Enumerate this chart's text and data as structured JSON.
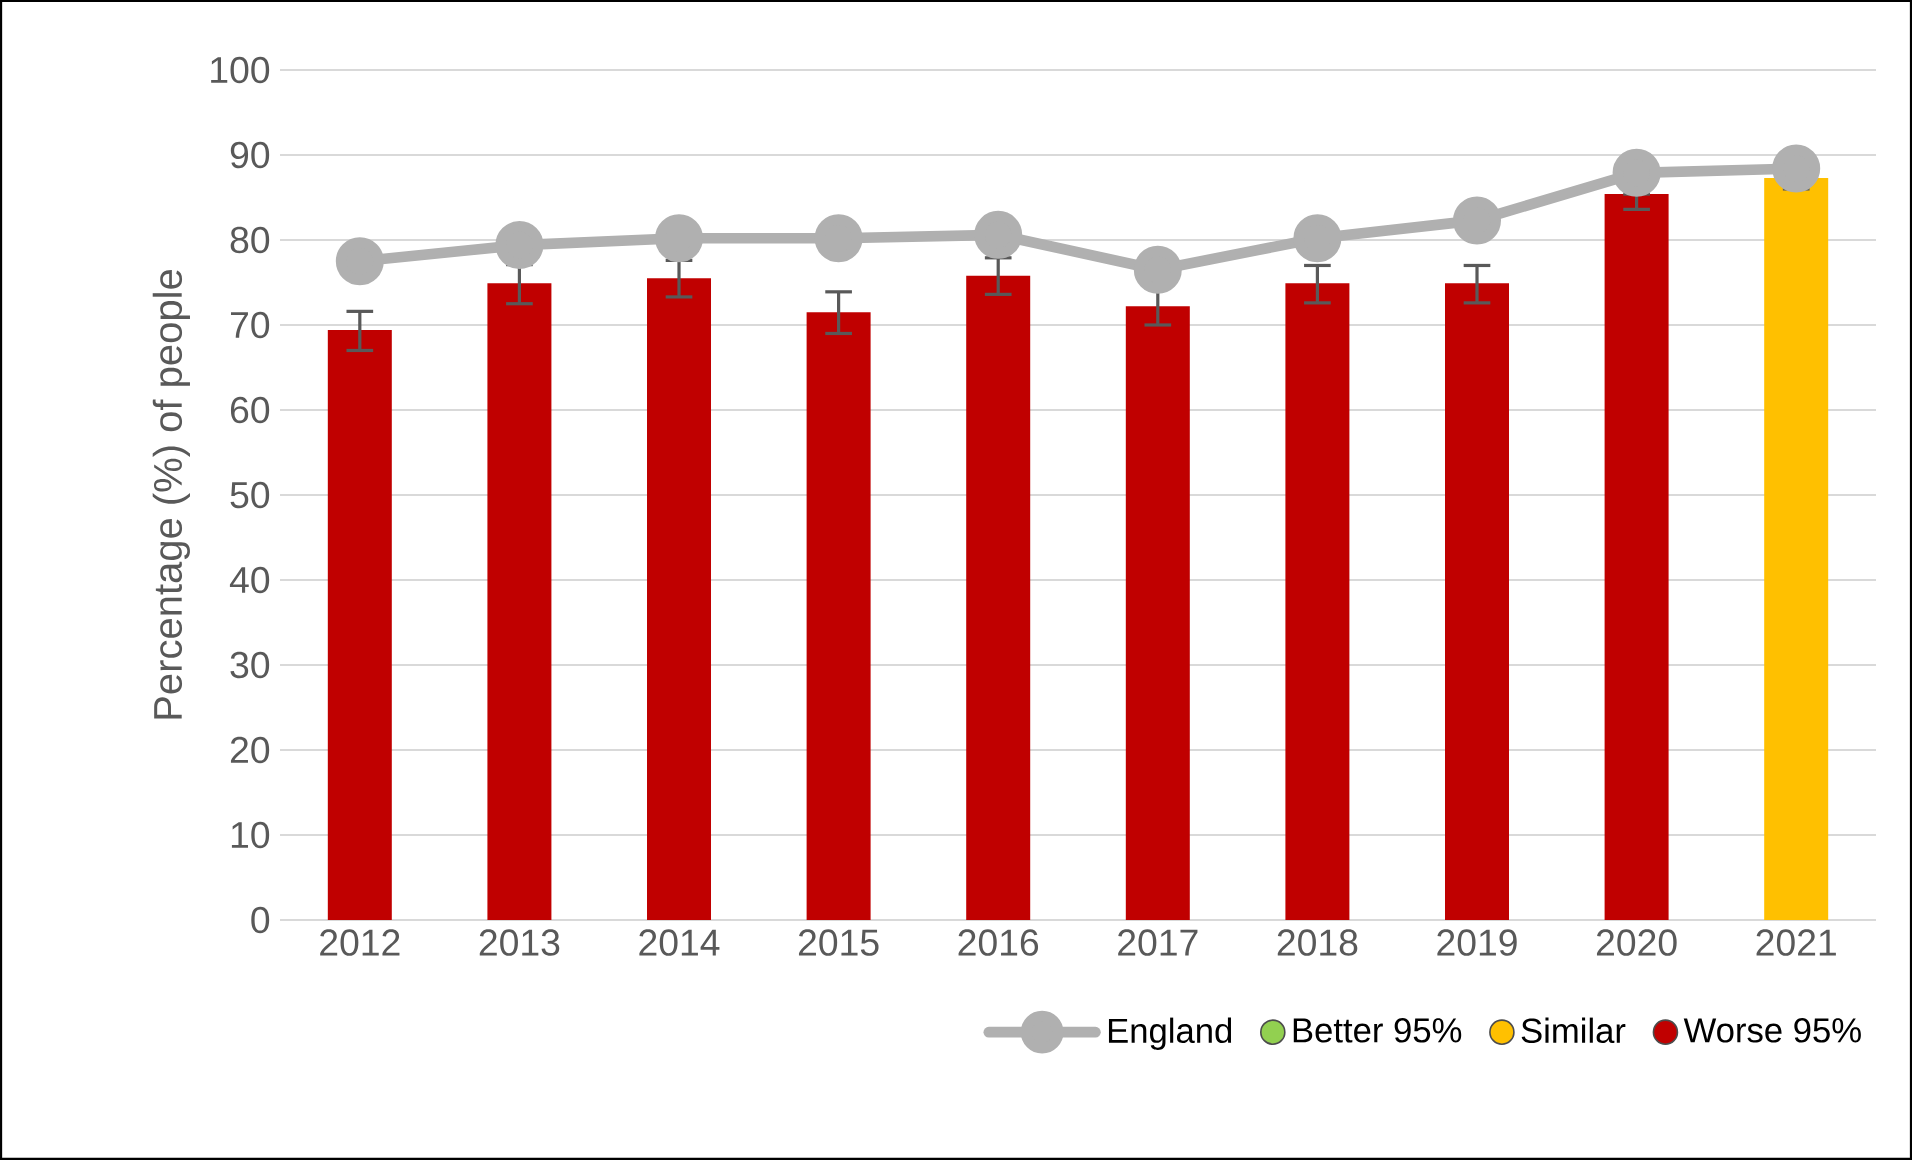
{
  "chart_data": {
    "type": "bar",
    "categories": [
      "2012",
      "2013",
      "2014",
      "2015",
      "2016",
      "2017",
      "2018",
      "2019",
      "2020",
      "2021"
    ],
    "ylabel": "Percentage (%) of people",
    "ylim": [
      0,
      100
    ],
    "yticks": [
      0,
      10,
      20,
      30,
      40,
      50,
      60,
      70,
      80,
      90,
      100
    ],
    "grid": "y",
    "legend": "bottom right",
    "series": [
      {
        "name": "England",
        "type": "line",
        "color": "#b0b0b0",
        "marker": "circle",
        "values": [
          77.5,
          79.4,
          80.2,
          80.2,
          80.6,
          76.5,
          80.2,
          82.3,
          87.9,
          88.4
        ]
      },
      {
        "name": "Better 95%",
        "color": "#92d050",
        "values": [
          null,
          null,
          null,
          null,
          null,
          null,
          null,
          null,
          null,
          null
        ]
      },
      {
        "name": "Similar",
        "color": "#ffc000",
        "values": [
          null,
          null,
          null,
          null,
          null,
          null,
          null,
          null,
          null,
          87.3
        ],
        "errors": [
          null,
          null,
          null,
          null,
          null,
          null,
          null,
          null,
          null,
          [
            86.0,
            87.3
          ]
        ]
      },
      {
        "name": "Worse 95%",
        "color": "#c00000",
        "values": [
          69.4,
          74.9,
          75.5,
          71.5,
          75.8,
          72.2,
          74.9,
          74.9,
          85.4,
          null
        ],
        "errors": [
          [
            67.0,
            71.6
          ],
          [
            72.5,
            77.1
          ],
          [
            73.3,
            77.6
          ],
          [
            69.0,
            73.9
          ],
          [
            73.6,
            77.9
          ],
          [
            70.0,
            74.4
          ],
          [
            72.6,
            77.0
          ],
          [
            72.6,
            77.0
          ],
          [
            83.6,
            85.4
          ],
          null
        ]
      }
    ]
  }
}
